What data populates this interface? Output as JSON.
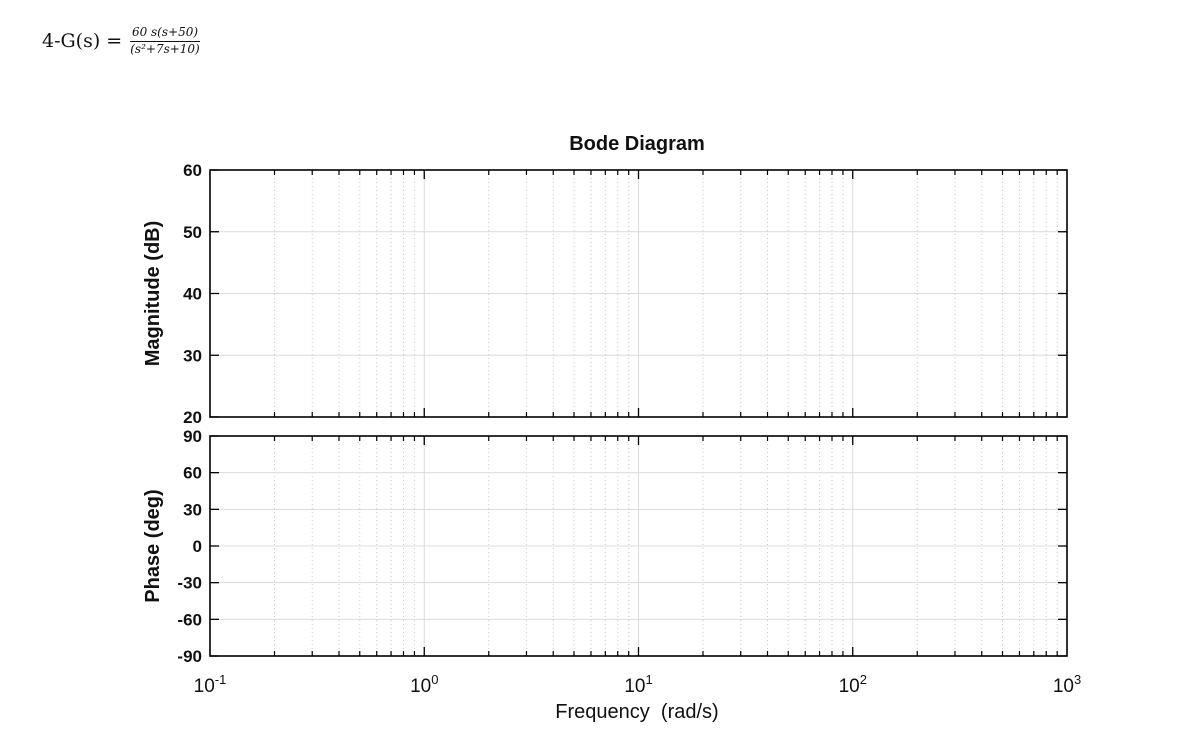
{
  "problem": {
    "label": "4-G(s) =",
    "numerator": "60 s(s+50)",
    "denominator": "(s²+7s+10)"
  },
  "chart_data": {
    "type": "line",
    "title": "Bode Diagram",
    "xlabel": "Frequency  (rad/s)",
    "xscale": "log",
    "xlim": [
      0.1,
      1000
    ],
    "x_ticks": [
      {
        "value": 0.1,
        "base": "10",
        "exp": "-1"
      },
      {
        "value": 1,
        "base": "10",
        "exp": "0"
      },
      {
        "value": 10,
        "base": "10",
        "exp": "1"
      },
      {
        "value": 100,
        "base": "10",
        "exp": "2"
      },
      {
        "value": 1000,
        "base": "10",
        "exp": "3"
      }
    ],
    "grid": true,
    "panels": [
      {
        "name": "magnitude",
        "ylabel": "Magnitude (dB)",
        "ylim": [
          20,
          60
        ],
        "yticks": [
          20,
          30,
          40,
          50,
          60
        ],
        "ytick_labels": [
          "20",
          "30",
          "40",
          "50",
          "60"
        ],
        "series": []
      },
      {
        "name": "phase",
        "ylabel": "Phase (deg)",
        "ylim": [
          -90,
          90
        ],
        "yticks": [
          -90,
          -60,
          -30,
          0,
          30,
          60,
          90
        ],
        "ytick_labels": [
          "-90",
          "-60",
          "-30",
          "0",
          "30",
          "60",
          "90"
        ],
        "series": []
      }
    ]
  }
}
